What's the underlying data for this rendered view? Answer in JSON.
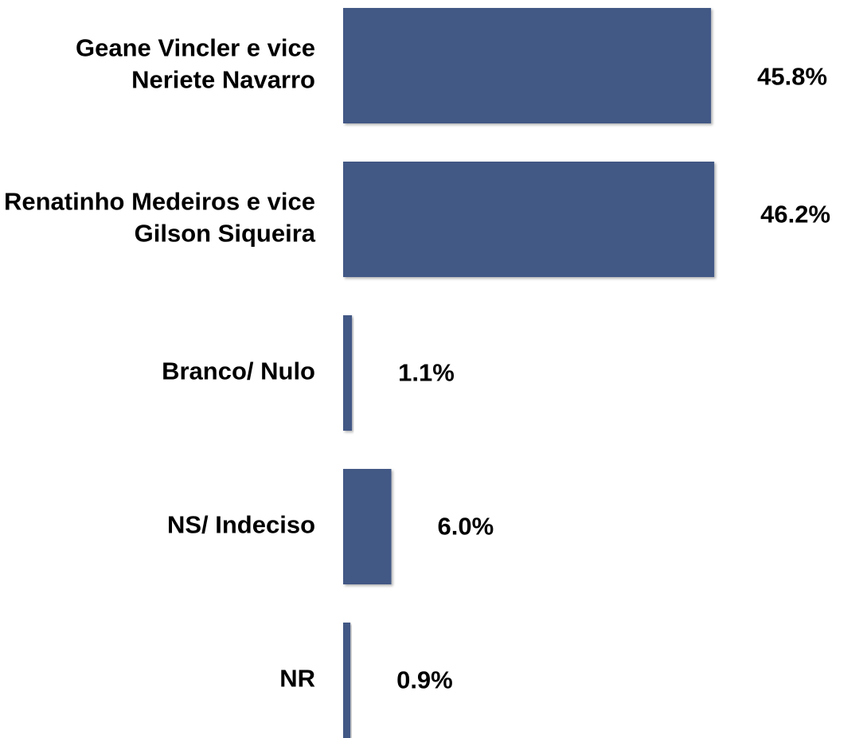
{
  "chart_data": {
    "type": "bar",
    "orientation": "horizontal",
    "categories": [
      "Geane Vincler e vice Neriete Navarro",
      "Renatinho Medeiros e vice Gilson Siqueira",
      "Branco/ Nulo",
      "NS/ Indeciso",
      "NR"
    ],
    "values": [
      45.8,
      46.2,
      1.1,
      6.0,
      0.9
    ],
    "value_labels": [
      "45.8%",
      "46.2%",
      "1.1%",
      "6.0%",
      "0.9%"
    ],
    "color": "#435985"
  }
}
